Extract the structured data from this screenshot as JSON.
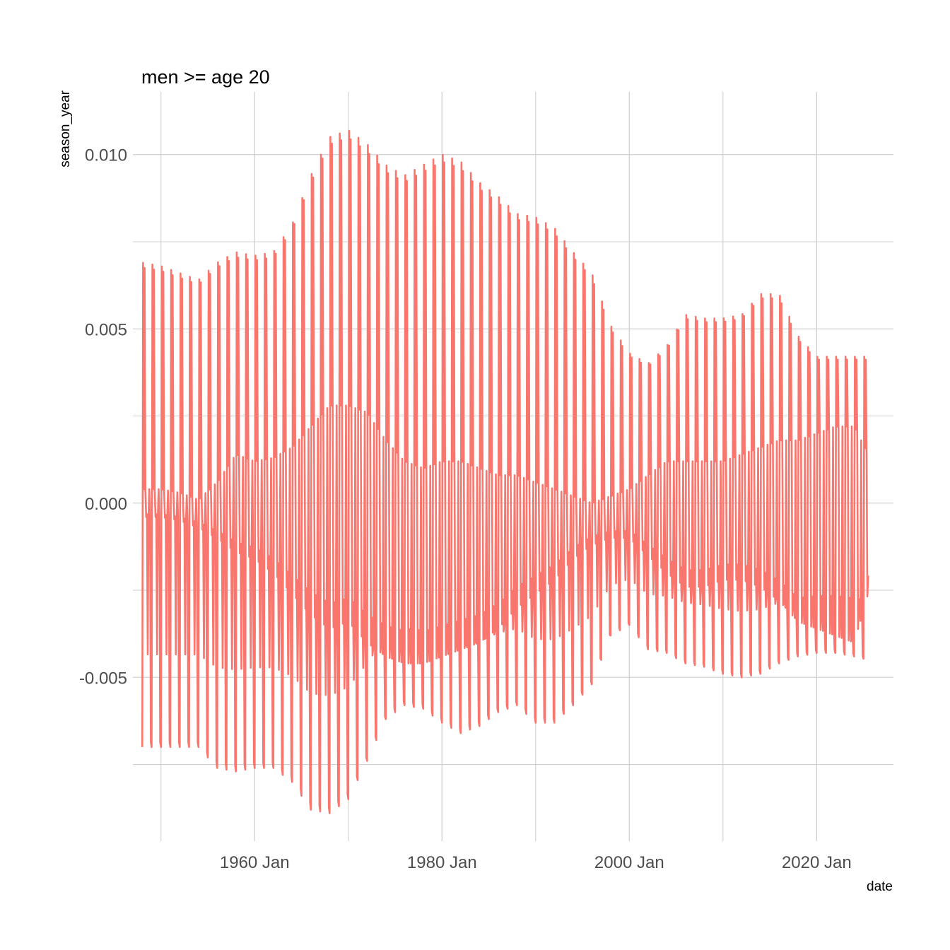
{
  "chart_data": {
    "type": "line",
    "title": "men >= age 20",
    "xlabel": "date",
    "ylabel": "season_year",
    "line_color": "#F8766D",
    "grid": true,
    "legend": "none",
    "xlim": [
      1947.0,
      2028.2
    ],
    "ylim": [
      -0.0097,
      0.0118
    ],
    "x_ticks": [
      {
        "value": 1960,
        "label": "1960 Jan"
      },
      {
        "value": 1980,
        "label": "1980 Jan"
      },
      {
        "value": 2000,
        "label": "2000 Jan"
      },
      {
        "value": 2020,
        "label": "2020 Jan"
      }
    ],
    "y_ticks": [
      {
        "value": 0.01,
        "label": "0.010"
      },
      {
        "value": 0.005,
        "label": "0.005"
      },
      {
        "value": 0.0,
        "label": "0.000"
      },
      {
        "value": -0.005,
        "label": "-0.005"
      }
    ],
    "x_start": 1948.0,
    "x_end": 2025.5,
    "series": [
      {
        "x": [
          1948,
          1950,
          1952,
          1954,
          1956,
          1958,
          1960,
          1962,
          1964,
          1966,
          1968,
          1970,
          1972,
          1974,
          1976,
          1978,
          1980,
          1982,
          1984,
          1986,
          1988,
          1990,
          1992,
          1994,
          1996,
          1998,
          2000,
          2002,
          2004,
          2006,
          2008,
          2010,
          2012,
          2014,
          2016,
          2018,
          2020,
          2022,
          2024,
          2025.5
        ],
        "peak": [
          0.0069,
          0.0068,
          0.0066,
          0.0064,
          0.0069,
          0.0072,
          0.0071,
          0.0072,
          0.008,
          0.0094,
          0.0105,
          0.0107,
          0.0103,
          0.0097,
          0.0094,
          0.0097,
          0.01,
          0.0098,
          0.0092,
          0.0088,
          0.0083,
          0.0082,
          0.0079,
          0.0072,
          0.0066,
          0.0051,
          0.0043,
          0.004,
          0.0045,
          0.0054,
          0.0053,
          0.0053,
          0.0054,
          0.006,
          0.006,
          0.0048,
          0.0042,
          0.0042,
          0.0042,
          0.0042
        ],
        "trough": [
          -0.007,
          -0.007,
          -0.007,
          -0.007,
          -0.0076,
          -0.0077,
          -0.0076,
          -0.0076,
          -0.008,
          -0.0088,
          -0.0089,
          -0.0085,
          -0.0074,
          -0.0062,
          -0.0058,
          -0.0059,
          -0.0063,
          -0.0066,
          -0.0064,
          -0.006,
          -0.0058,
          -0.0063,
          -0.0063,
          -0.0058,
          -0.0052,
          -0.0038,
          -0.0035,
          -0.0042,
          -0.0043,
          -0.0046,
          -0.0047,
          -0.0049,
          -0.005,
          -0.0049,
          -0.0046,
          -0.0044,
          -0.0043,
          -0.0043,
          -0.0044,
          -0.0045
        ],
        "mid_high": [
          0.0004,
          0.0004,
          0.0003,
          0.0001,
          0.0006,
          0.0014,
          0.0012,
          0.0013,
          0.0016,
          0.0022,
          0.0028,
          0.0028,
          0.0026,
          0.0018,
          0.0012,
          0.001,
          0.0012,
          0.0012,
          0.001,
          0.0008,
          0.0008,
          0.0006,
          0.0004,
          0.0002,
          0.0,
          0.0002,
          0.0004,
          0.0008,
          0.0012,
          0.0012,
          0.0012,
          0.0012,
          0.0014,
          0.0016,
          0.0018,
          0.0018,
          0.002,
          0.0022,
          0.0022,
          0.0014
        ],
        "mid_low": [
          -0.0004,
          -0.0004,
          -0.0005,
          -0.0007,
          -0.001,
          -0.0014,
          -0.0016,
          -0.002,
          -0.0026,
          -0.0032,
          -0.0036,
          -0.0034,
          -0.004,
          -0.0044,
          -0.0046,
          -0.0046,
          -0.0044,
          -0.0042,
          -0.004,
          -0.0036,
          -0.003,
          -0.0026,
          -0.0022,
          -0.0016,
          -0.0012,
          -0.001,
          -0.001,
          -0.0015,
          -0.002,
          -0.0024,
          -0.0024,
          -0.0022,
          -0.0022,
          -0.0024,
          -0.0028,
          -0.0034,
          -0.0036,
          -0.0038,
          -0.004,
          -0.0026
        ]
      }
    ]
  }
}
